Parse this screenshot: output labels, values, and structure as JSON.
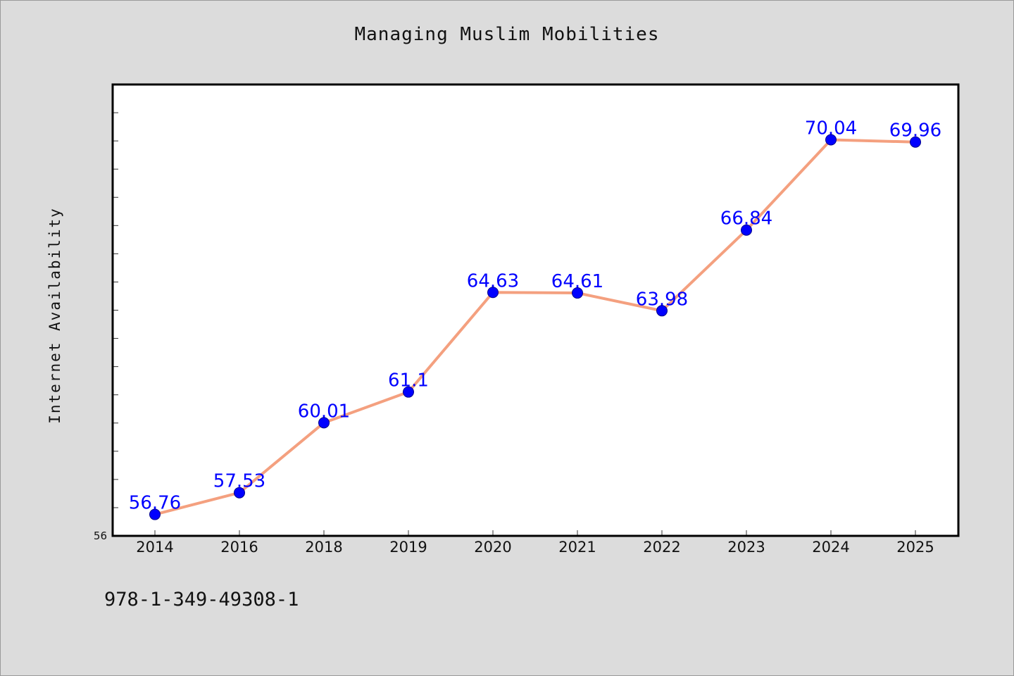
{
  "chart_data": {
    "type": "line",
    "title": "Managing Muslim Mobilities",
    "xlabel": "",
    "ylabel": "Internet Availability",
    "categories": [
      "2014",
      "2016",
      "2018",
      "2019",
      "2020",
      "2021",
      "2022",
      "2023",
      "2024",
      "2025"
    ],
    "series": [
      {
        "values": [
          56.76,
          57.53,
          60.01,
          61.1,
          64.63,
          64.61,
          63.98,
          66.84,
          70.04,
          69.96
        ]
      }
    ],
    "data_labels": [
      "56.76",
      "57.53",
      "60.01",
      "61.1",
      "64.63",
      "64.61",
      "63.98",
      "66.84",
      "70.04",
      "69.96"
    ],
    "ylim": [
      56,
      72
    ],
    "y_tick_labels": [
      "56"
    ],
    "grid": false,
    "line_color": "#f4a07f",
    "marker_color": "#0000ff",
    "label_color": "#0000ff"
  },
  "footer": {
    "isbn": "978-1-349-49308-1"
  }
}
